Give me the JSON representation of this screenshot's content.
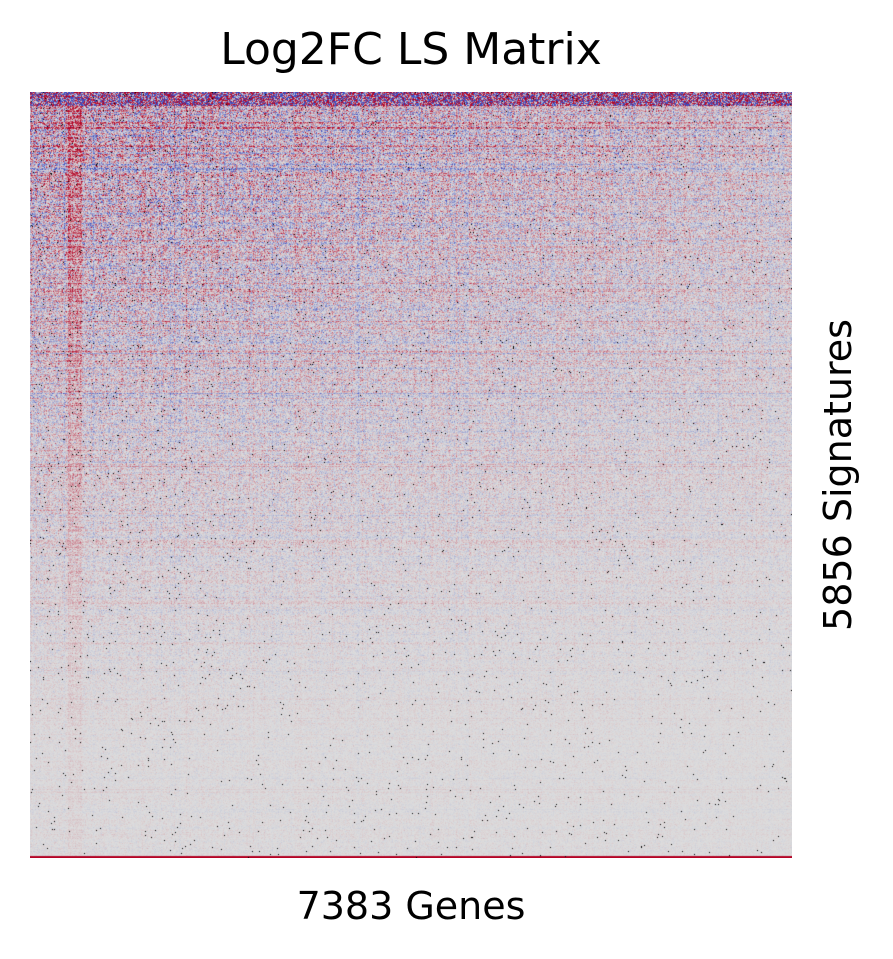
{
  "chart_data": {
    "type": "heatmap",
    "title": "Log2FC LS Matrix",
    "xlabel": "7383 Genes",
    "ylabel": "5856 Signatures",
    "n_columns": 7383,
    "n_rows": 5856,
    "axis_ticks": false,
    "colorbar": false,
    "grid": false,
    "colormap": {
      "negative": "#3b4cc0",
      "zero": "#dddddd",
      "positive": "#b40426",
      "missing": "#000000"
    }
  }
}
